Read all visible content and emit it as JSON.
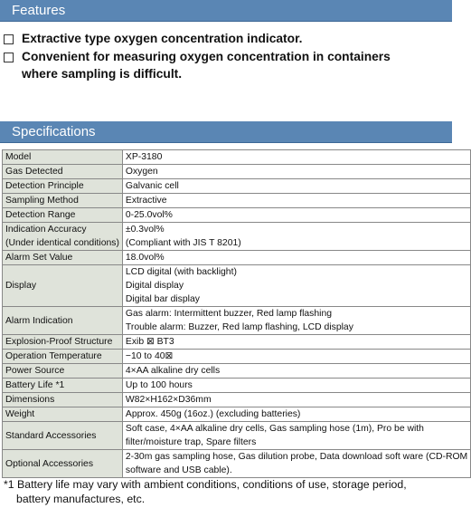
{
  "features": {
    "title": "Features",
    "items": [
      [
        "Extractive type oxygen concentration indicator."
      ],
      [
        "Convenient for measuring oxygen concentration in containers",
        "where sampling is difficult."
      ]
    ]
  },
  "specifications": {
    "title": "Specifications",
    "rows": [
      {
        "label": [
          "Model"
        ],
        "value": [
          "XP-3180"
        ]
      },
      {
        "label": [
          "Gas Detected"
        ],
        "value": [
          "Oxygen"
        ]
      },
      {
        "label": [
          "Detection Principle"
        ],
        "value": [
          "Galvanic cell"
        ]
      },
      {
        "label": [
          "Sampling Method"
        ],
        "value": [
          "Extractive"
        ]
      },
      {
        "label": [
          "Detection Range"
        ],
        "value": [
          "0-25.0vol%"
        ]
      },
      {
        "label": [
          "Indication Accuracy",
          "(Under identical conditions)"
        ],
        "value": [
          "±0.3vol%",
          "(Compliant with JIS T 8201)"
        ]
      },
      {
        "label": [
          "Alarm Set Value"
        ],
        "value": [
          "18.0vol%"
        ]
      },
      {
        "label": [
          "Display"
        ],
        "value": [
          "LCD digital (with backlight)",
          "Digital display",
          "Digital bar display"
        ]
      },
      {
        "label": [
          "Alarm Indication"
        ],
        "value": [
          "Gas alarm: Intermittent buzzer, Red lamp flashing",
          "Trouble alarm: Buzzer, Red lamp flashing, LCD display"
        ]
      },
      {
        "label": [
          "Explosion-Proof Structure"
        ],
        "value": [
          "Exib ⊠ BT3"
        ]
      },
      {
        "label": [
          "Operation Temperature"
        ],
        "value": [
          "−10 to 40⊠"
        ]
      },
      {
        "label": [
          "Power Source"
        ],
        "value": [
          "4×AA alkaline dry cells"
        ]
      },
      {
        "label": [
          "Battery Life *1"
        ],
        "value": [
          "Up to 100 hours"
        ]
      },
      {
        "label": [
          "Dimensions"
        ],
        "value": [
          "W82×H162×D36mm"
        ]
      },
      {
        "label": [
          "Weight"
        ],
        "value": [
          "Approx. 450g (16oz.) (excluding batteries)"
        ]
      },
      {
        "label": [
          "Standard Accessories"
        ],
        "value": [
          "Soft case, 4×AA alkaline dry cells, Gas sampling hose (1m), Pro            be with",
          "filter/moisture trap, Spare filters"
        ]
      },
      {
        "label": [
          "Optional Accessories"
        ],
        "value": [
          "2-30m gas sampling hose, Gas dilution probe, Data download soft      ware (CD-ROM",
          "software and USB cable)."
        ]
      }
    ],
    "footnote": [
      "*1 Battery life may vary with ambient conditions, conditions of use, storage period,",
      "battery manufactures, etc."
    ]
  }
}
